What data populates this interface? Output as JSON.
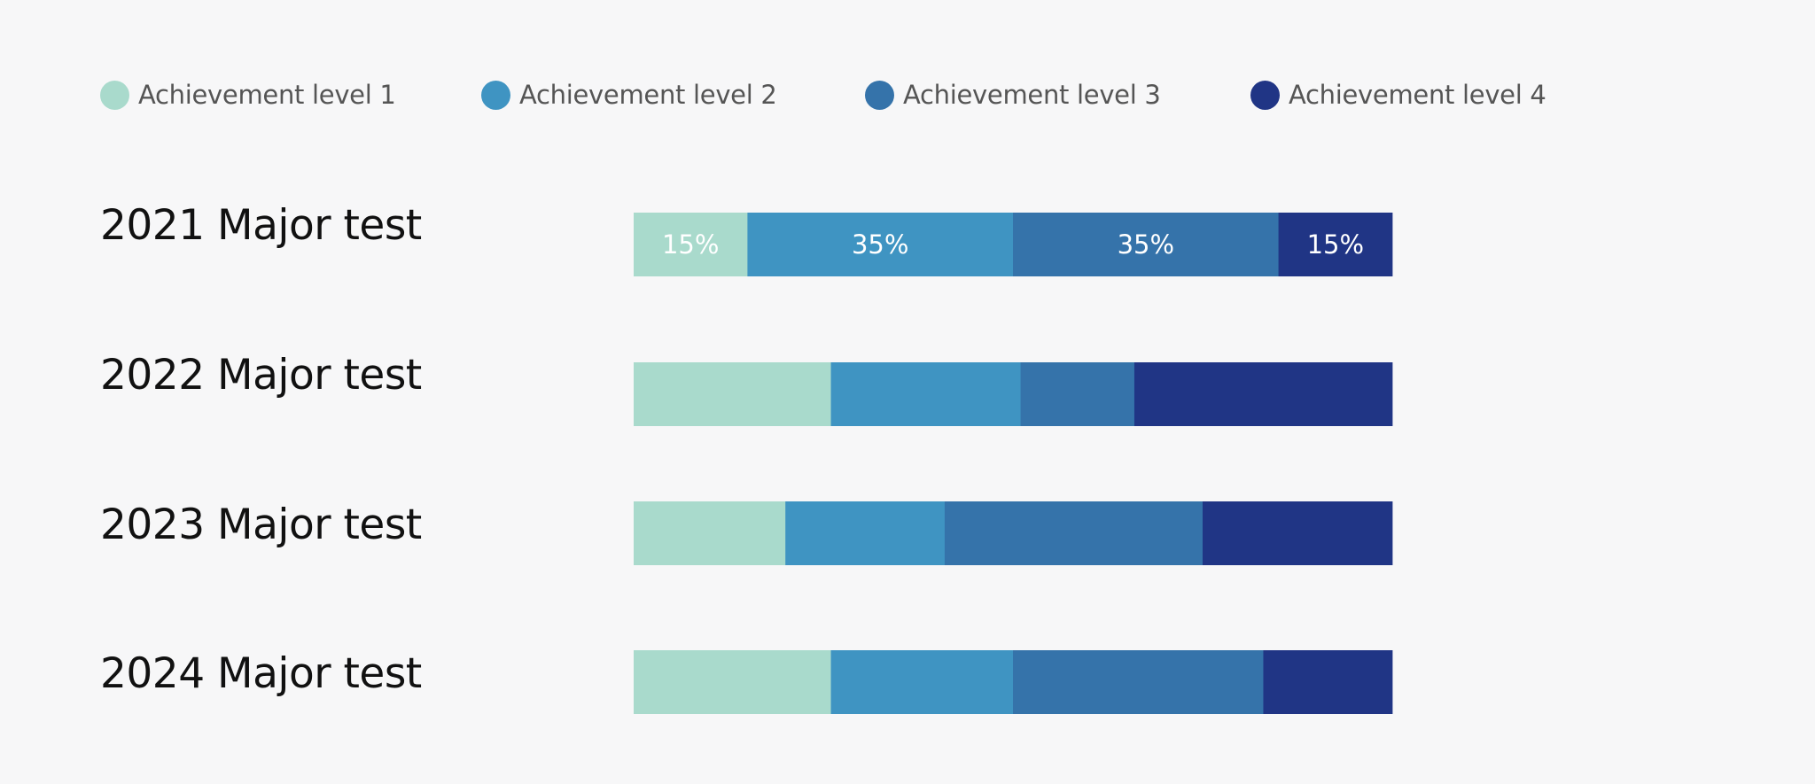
{
  "legend": [
    {
      "label": "Achievement level 1",
      "color": "#a9dacc"
    },
    {
      "label": "Achievement level 2",
      "color": "#3f94c2"
    },
    {
      "label": "Achievement level 3",
      "color": "#3573aa"
    },
    {
      "label": "Achievement level 4",
      "color": "#203585"
    }
  ],
  "chart_data": {
    "type": "bar",
    "orientation": "horizontal",
    "stacked": true,
    "categories": [
      "2021 Major test",
      "2022 Major test",
      "2023 Major test",
      "2024 Major test"
    ],
    "series": [
      {
        "name": "Achievement level 1",
        "color": "#a9dacc",
        "values": [
          15,
          26,
          20,
          26
        ],
        "labels": [
          "15%",
          "",
          "",
          ""
        ]
      },
      {
        "name": "Achievement level 2",
        "color": "#3f94c2",
        "values": [
          35,
          25,
          21,
          24
        ],
        "labels": [
          "35%",
          "",
          "",
          ""
        ]
      },
      {
        "name": "Achievement level 3",
        "color": "#3573aa",
        "values": [
          35,
          15,
          34,
          33
        ],
        "labels": [
          "35%",
          "",
          "",
          ""
        ]
      },
      {
        "name": "Achievement level 4",
        "color": "#203585",
        "values": [
          15,
          34,
          25,
          17
        ],
        "labels": [
          "15%",
          "",
          "",
          ""
        ]
      }
    ],
    "xlim": [
      0,
      100
    ],
    "grid": false,
    "legend_position": "top"
  }
}
